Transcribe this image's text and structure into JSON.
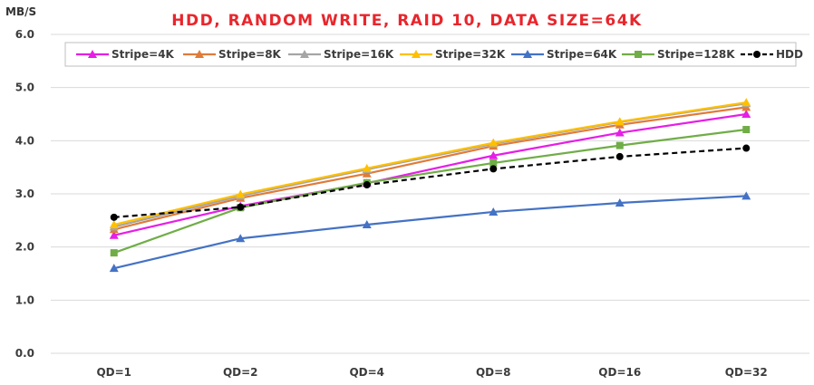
{
  "chart_data": {
    "type": "line",
    "title": "HDD, RANDOM WRITE, RAID 10, DATA SIZE=64K",
    "ylabel": "MB/S",
    "xlabel": "",
    "categories": [
      "QD=1",
      "QD=2",
      "QD=4",
      "QD=8",
      "QD=16",
      "QD=32"
    ],
    "ylim": [
      0,
      6
    ],
    "yticks": [
      "0.0",
      "1.0",
      "2.0",
      "3.0",
      "4.0",
      "5.0",
      "6.0"
    ],
    "ytick_values": [
      0,
      1,
      2,
      3,
      4,
      5,
      6
    ],
    "grid": true,
    "legend_position": "top",
    "series": [
      {
        "name": "Stripe=4K",
        "color": "#e61ee6",
        "marker": "triangle",
        "dash": false,
        "values": [
          2.22,
          2.77,
          3.2,
          3.72,
          4.15,
          4.5
        ]
      },
      {
        "name": "Stripe=8K",
        "color": "#e07b39",
        "marker": "triangle",
        "dash": false,
        "values": [
          2.33,
          2.92,
          3.38,
          3.9,
          4.3,
          4.63
        ]
      },
      {
        "name": "Stripe=16K",
        "color": "#a5a5a5",
        "marker": "triangle",
        "dash": false,
        "values": [
          2.38,
          2.96,
          3.46,
          3.94,
          4.35,
          4.7
        ]
      },
      {
        "name": "Stripe=32K",
        "color": "#ffc000",
        "marker": "triangle",
        "dash": false,
        "values": [
          2.42,
          2.99,
          3.48,
          3.96,
          4.36,
          4.72
        ]
      },
      {
        "name": "Stripe=64K",
        "color": "#4472c4",
        "marker": "triangle",
        "dash": false,
        "values": [
          1.6,
          2.16,
          2.42,
          2.66,
          2.83,
          2.96
        ]
      },
      {
        "name": "Stripe=128K",
        "color": "#70ad47",
        "marker": "square",
        "dash": false,
        "values": [
          1.89,
          2.74,
          3.21,
          3.58,
          3.91,
          4.21
        ]
      },
      {
        "name": "HDD",
        "color": "#000000",
        "marker": "circle",
        "dash": true,
        "values": [
          2.56,
          2.75,
          3.17,
          3.47,
          3.7,
          3.86
        ]
      }
    ]
  }
}
